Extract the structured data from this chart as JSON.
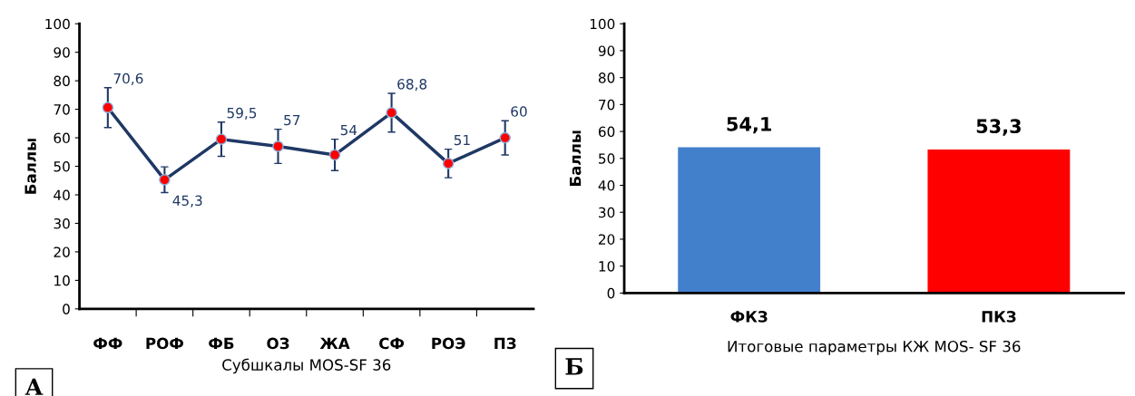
{
  "chart_data": [
    {
      "type": "line",
      "xlabel": "Субшкалы MOS-SF 36",
      "ylabel": "Баллы",
      "categories": [
        "ФФ",
        "РОФ",
        "ФБ",
        "ОЗ",
        "ЖА",
        "СФ",
        "РОЭ",
        "ПЗ"
      ],
      "series": [
        {
          "color": "#1f3864",
          "values": [
            70.6,
            45.3,
            59.5,
            57,
            54,
            68.8,
            51,
            60
          ],
          "errors": [
            7,
            4.5,
            6,
            6,
            5.5,
            6.8,
            5,
            6
          ],
          "value_labels": [
            "70,6",
            "45,3",
            "59,5",
            "57",
            "54",
            "68,8",
            "51",
            "60"
          ]
        }
      ],
      "marker": "circle",
      "ylim": [
        0,
        100
      ],
      "yticks": [
        0,
        10,
        20,
        30,
        40,
        50,
        60,
        70,
        80,
        90,
        100
      ],
      "grid": false,
      "annotations": [
        "А"
      ]
    },
    {
      "type": "bar",
      "xlabel": "Итоговые параметры КЖ MOS- SF 36",
      "ylabel": "Баллы",
      "categories": [
        "ФКЗ",
        "ПКЗ"
      ],
      "values": [
        54.1,
        53.3
      ],
      "colors": [
        "#4380cc",
        "#ff0000"
      ],
      "value_labels": [
        "54,1",
        "53,3"
      ],
      "ylim": [
        0,
        100
      ],
      "yticks": [
        0,
        10,
        20,
        30,
        40,
        50,
        60,
        70,
        80,
        90,
        100
      ],
      "grid": false,
      "annotations": [
        "Б"
      ]
    }
  ]
}
